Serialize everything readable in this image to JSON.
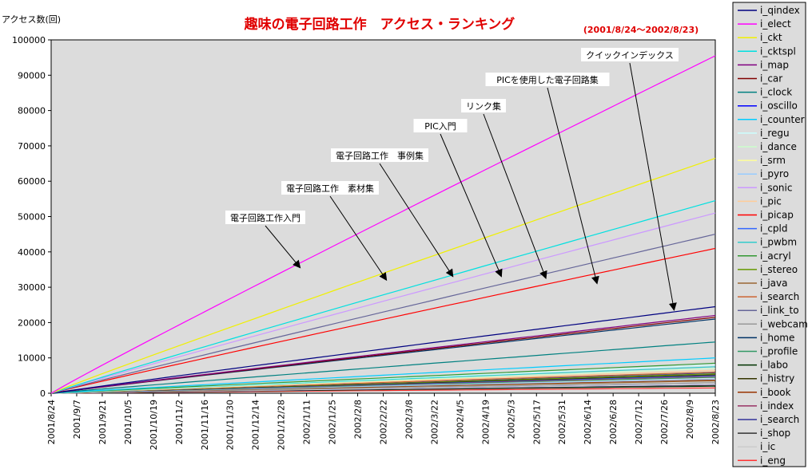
{
  "chart_data": {
    "type": "line",
    "title": "趣味の電子回路工作　アクセス・ランキング",
    "subtitle": "(2001/8/24～2002/8/23)",
    "ylabel": "アクセス数(回)",
    "ylim": [
      0,
      100000
    ],
    "yticks": [
      "0",
      "10000",
      "20000",
      "30000",
      "40000",
      "50000",
      "60000",
      "70000",
      "80000",
      "90000",
      "100000"
    ],
    "x_ticks": [
      "2001/8/24",
      "2001/9/7",
      "2001/9/21",
      "2001/10/5",
      "2001/10/19",
      "2001/11/2",
      "2001/11/16",
      "2001/11/30",
      "2001/12/14",
      "2001/12/28",
      "2002/1/11",
      "2002/1/25",
      "2002/2/8",
      "2002/2/22",
      "2002/3/8",
      "2002/3/22",
      "2002/4/5",
      "2002/4/19",
      "2002/5/3",
      "2002/5/17",
      "2002/5/31",
      "2002/6/14",
      "2002/6/28",
      "2002/7/12",
      "2002/7/26",
      "2002/8/9",
      "2002/8/23"
    ],
    "grid": false,
    "legend_position": "right",
    "series": [
      {
        "name": "i_qindex",
        "color": "#000080",
        "values": [
          0,
          24500
        ]
      },
      {
        "name": "i_elect",
        "color": "#ff00ff",
        "values": [
          0,
          95500
        ]
      },
      {
        "name": "i_ckt",
        "color": "#f0f000",
        "values": [
          0,
          66500
        ]
      },
      {
        "name": "i_cktspl",
        "color": "#00e0e0",
        "values": [
          0,
          54500
        ]
      },
      {
        "name": "i_map",
        "color": "#800080",
        "values": [
          0,
          22000
        ]
      },
      {
        "name": "i_car",
        "color": "#800000",
        "values": [
          0,
          21500
        ]
      },
      {
        "name": "i_clock",
        "color": "#008080",
        "values": [
          0,
          14500
        ]
      },
      {
        "name": "i_oscillo",
        "color": "#0000ff",
        "values": [
          0,
          2500
        ]
      },
      {
        "name": "i_counter",
        "color": "#00ccff",
        "values": [
          0,
          10000
        ]
      },
      {
        "name": "i_regu",
        "color": "#ccffff",
        "values": [
          0,
          8000
        ]
      },
      {
        "name": "i_dance",
        "color": "#ccffcc",
        "values": [
          0,
          7000
        ]
      },
      {
        "name": "i_srm",
        "color": "#ffff99",
        "values": [
          0,
          6000
        ]
      },
      {
        "name": "i_pyro",
        "color": "#99ccff",
        "values": [
          0,
          4000
        ]
      },
      {
        "name": "i_sonic",
        "color": "#cc99ff",
        "values": [
          0,
          51000
        ]
      },
      {
        "name": "i_pic",
        "color": "#ffcc99",
        "values": [
          0,
          6500
        ]
      },
      {
        "name": "i_picap",
        "color": "#ff0000",
        "values": [
          0,
          41000
        ]
      },
      {
        "name": "i_cpld",
        "color": "#3366ff",
        "values": [
          0,
          5000
        ]
      },
      {
        "name": "i_pwbm",
        "color": "#33cccc",
        "values": [
          0,
          7500
        ]
      },
      {
        "name": "i_acryl",
        "color": "#339933",
        "values": [
          0,
          8500
        ]
      },
      {
        "name": "i_stereo",
        "color": "#669900",
        "values": [
          0,
          5500
        ]
      },
      {
        "name": "i_java",
        "color": "#996633",
        "values": [
          0,
          3500
        ]
      },
      {
        "name": "i_search",
        "color": "#cc6633",
        "values": [
          0,
          6000
        ]
      },
      {
        "name": "i_link_to",
        "color": "#666699",
        "values": [
          0,
          45000
        ]
      },
      {
        "name": "i_webcam",
        "color": "#999999",
        "values": [
          0,
          3000
        ]
      },
      {
        "name": "i_home",
        "color": "#003366",
        "values": [
          0,
          21000
        ]
      },
      {
        "name": "i_profile",
        "color": "#339966",
        "values": [
          0,
          4500
        ]
      },
      {
        "name": "i_labo",
        "color": "#003300",
        "values": [
          0,
          2000
        ]
      },
      {
        "name": "i_histry",
        "color": "#333300",
        "values": [
          0,
          5200
        ]
      },
      {
        "name": "i_book",
        "color": "#993300",
        "values": [
          0,
          3800
        ]
      },
      {
        "name": "i_index",
        "color": "#993366",
        "values": [
          0,
          4800
        ]
      },
      {
        "name": "i_search",
        "color": "#333399",
        "values": [
          0,
          5800
        ]
      },
      {
        "name": "i_shop",
        "color": "#333333",
        "values": [
          0,
          2200
        ]
      },
      {
        "name": "i_ic",
        "color": "#cccccc",
        "values": [
          0,
          2500
        ]
      },
      {
        "name": "i_eng",
        "color": "#ff3333",
        "values": [
          0,
          1500
        ]
      }
    ],
    "annotations": [
      {
        "text": "電子回路工作入門",
        "target_series": "i_elect",
        "x_frac": 0.375,
        "value": 35500
      },
      {
        "text": "電子回路工作　素材集",
        "target_series": "i_ckt",
        "x_frac": 0.505,
        "value": 32000
      },
      {
        "text": "電子回路工作　事例集",
        "target_series": "i_cktspl",
        "x_frac": 0.605,
        "value": 33000
      },
      {
        "text": "PIC入門",
        "target_series": "i_sonic",
        "x_frac": 0.678,
        "value": 33000
      },
      {
        "text": "リンク集",
        "target_series": "i_link_to",
        "x_frac": 0.745,
        "value": 32500
      },
      {
        "text": "PICを使用した電子回路集",
        "target_series": "i_picap",
        "x_frac": 0.822,
        "value": 31000
      },
      {
        "text": "クイックインデックス",
        "target_series": "i_qindex",
        "x_frac": 0.938,
        "value": 23500
      }
    ]
  }
}
